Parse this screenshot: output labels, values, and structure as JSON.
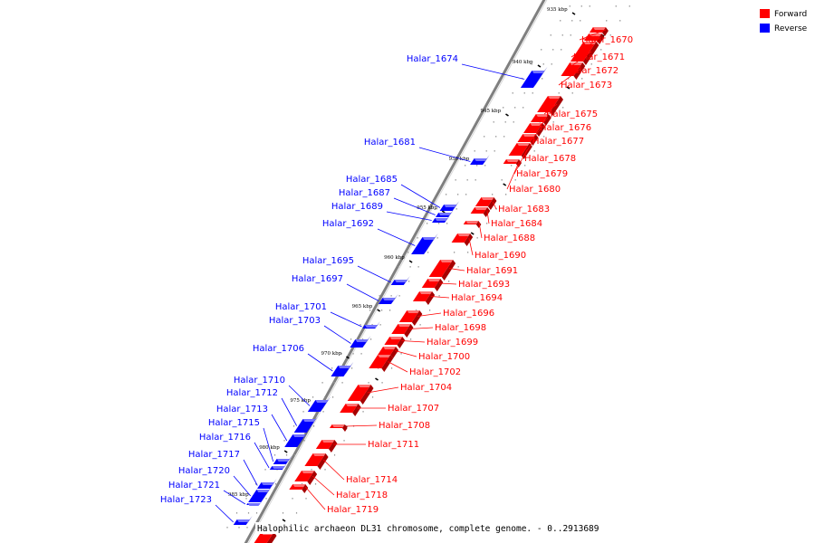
{
  "caption": "Halophilic archaeon DL31 chromosome, complete genome. - 0..2913689",
  "legend": [
    {
      "label": "Forward",
      "color": "#ff0000"
    },
    {
      "label": "Reverse",
      "color": "#0000ff"
    }
  ],
  "colors": {
    "forward": "#ff0000",
    "reverse": "#0000ff",
    "axis": "#7f7f7f"
  },
  "scale_ticks": [
    "935 kbp",
    "940 kbp",
    "945 kbp",
    "950 kbp",
    "955 kbp",
    "960 kbp",
    "965 kbp",
    "970 kbp",
    "975 kbp",
    "980 kbp",
    "985 kbp"
  ],
  "genes_forward": [
    "Halar_1670",
    "Halar_1671",
    "Halar_1672",
    "Halar_1673",
    "Halar_1675",
    "Halar_1676",
    "Halar_1677",
    "Halar_1678",
    "Halar_1679",
    "Halar_1680",
    "Halar_1683",
    "Halar_1684",
    "Halar_1688",
    "Halar_1690",
    "Halar_1691",
    "Halar_1693",
    "Halar_1694",
    "Halar_1696",
    "Halar_1698",
    "Halar_1699",
    "Halar_1700",
    "Halar_1702",
    "Halar_1704",
    "Halar_1707",
    "Halar_1708",
    "Halar_1711",
    "Halar_1714",
    "Halar_1718",
    "Halar_1719"
  ],
  "genes_reverse": [
    "Halar_1674",
    "Halar_1681",
    "Halar_1685",
    "Halar_1687",
    "Halar_1689",
    "Halar_1692",
    "Halar_1695",
    "Halar_1697",
    "Halar_1701",
    "Halar_1703",
    "Halar_1706",
    "Halar_1710",
    "Halar_1712",
    "Halar_1713",
    "Halar_1715",
    "Halar_1716",
    "Halar_1717",
    "Halar_1720",
    "Halar_1721",
    "Halar_1723"
  ]
}
